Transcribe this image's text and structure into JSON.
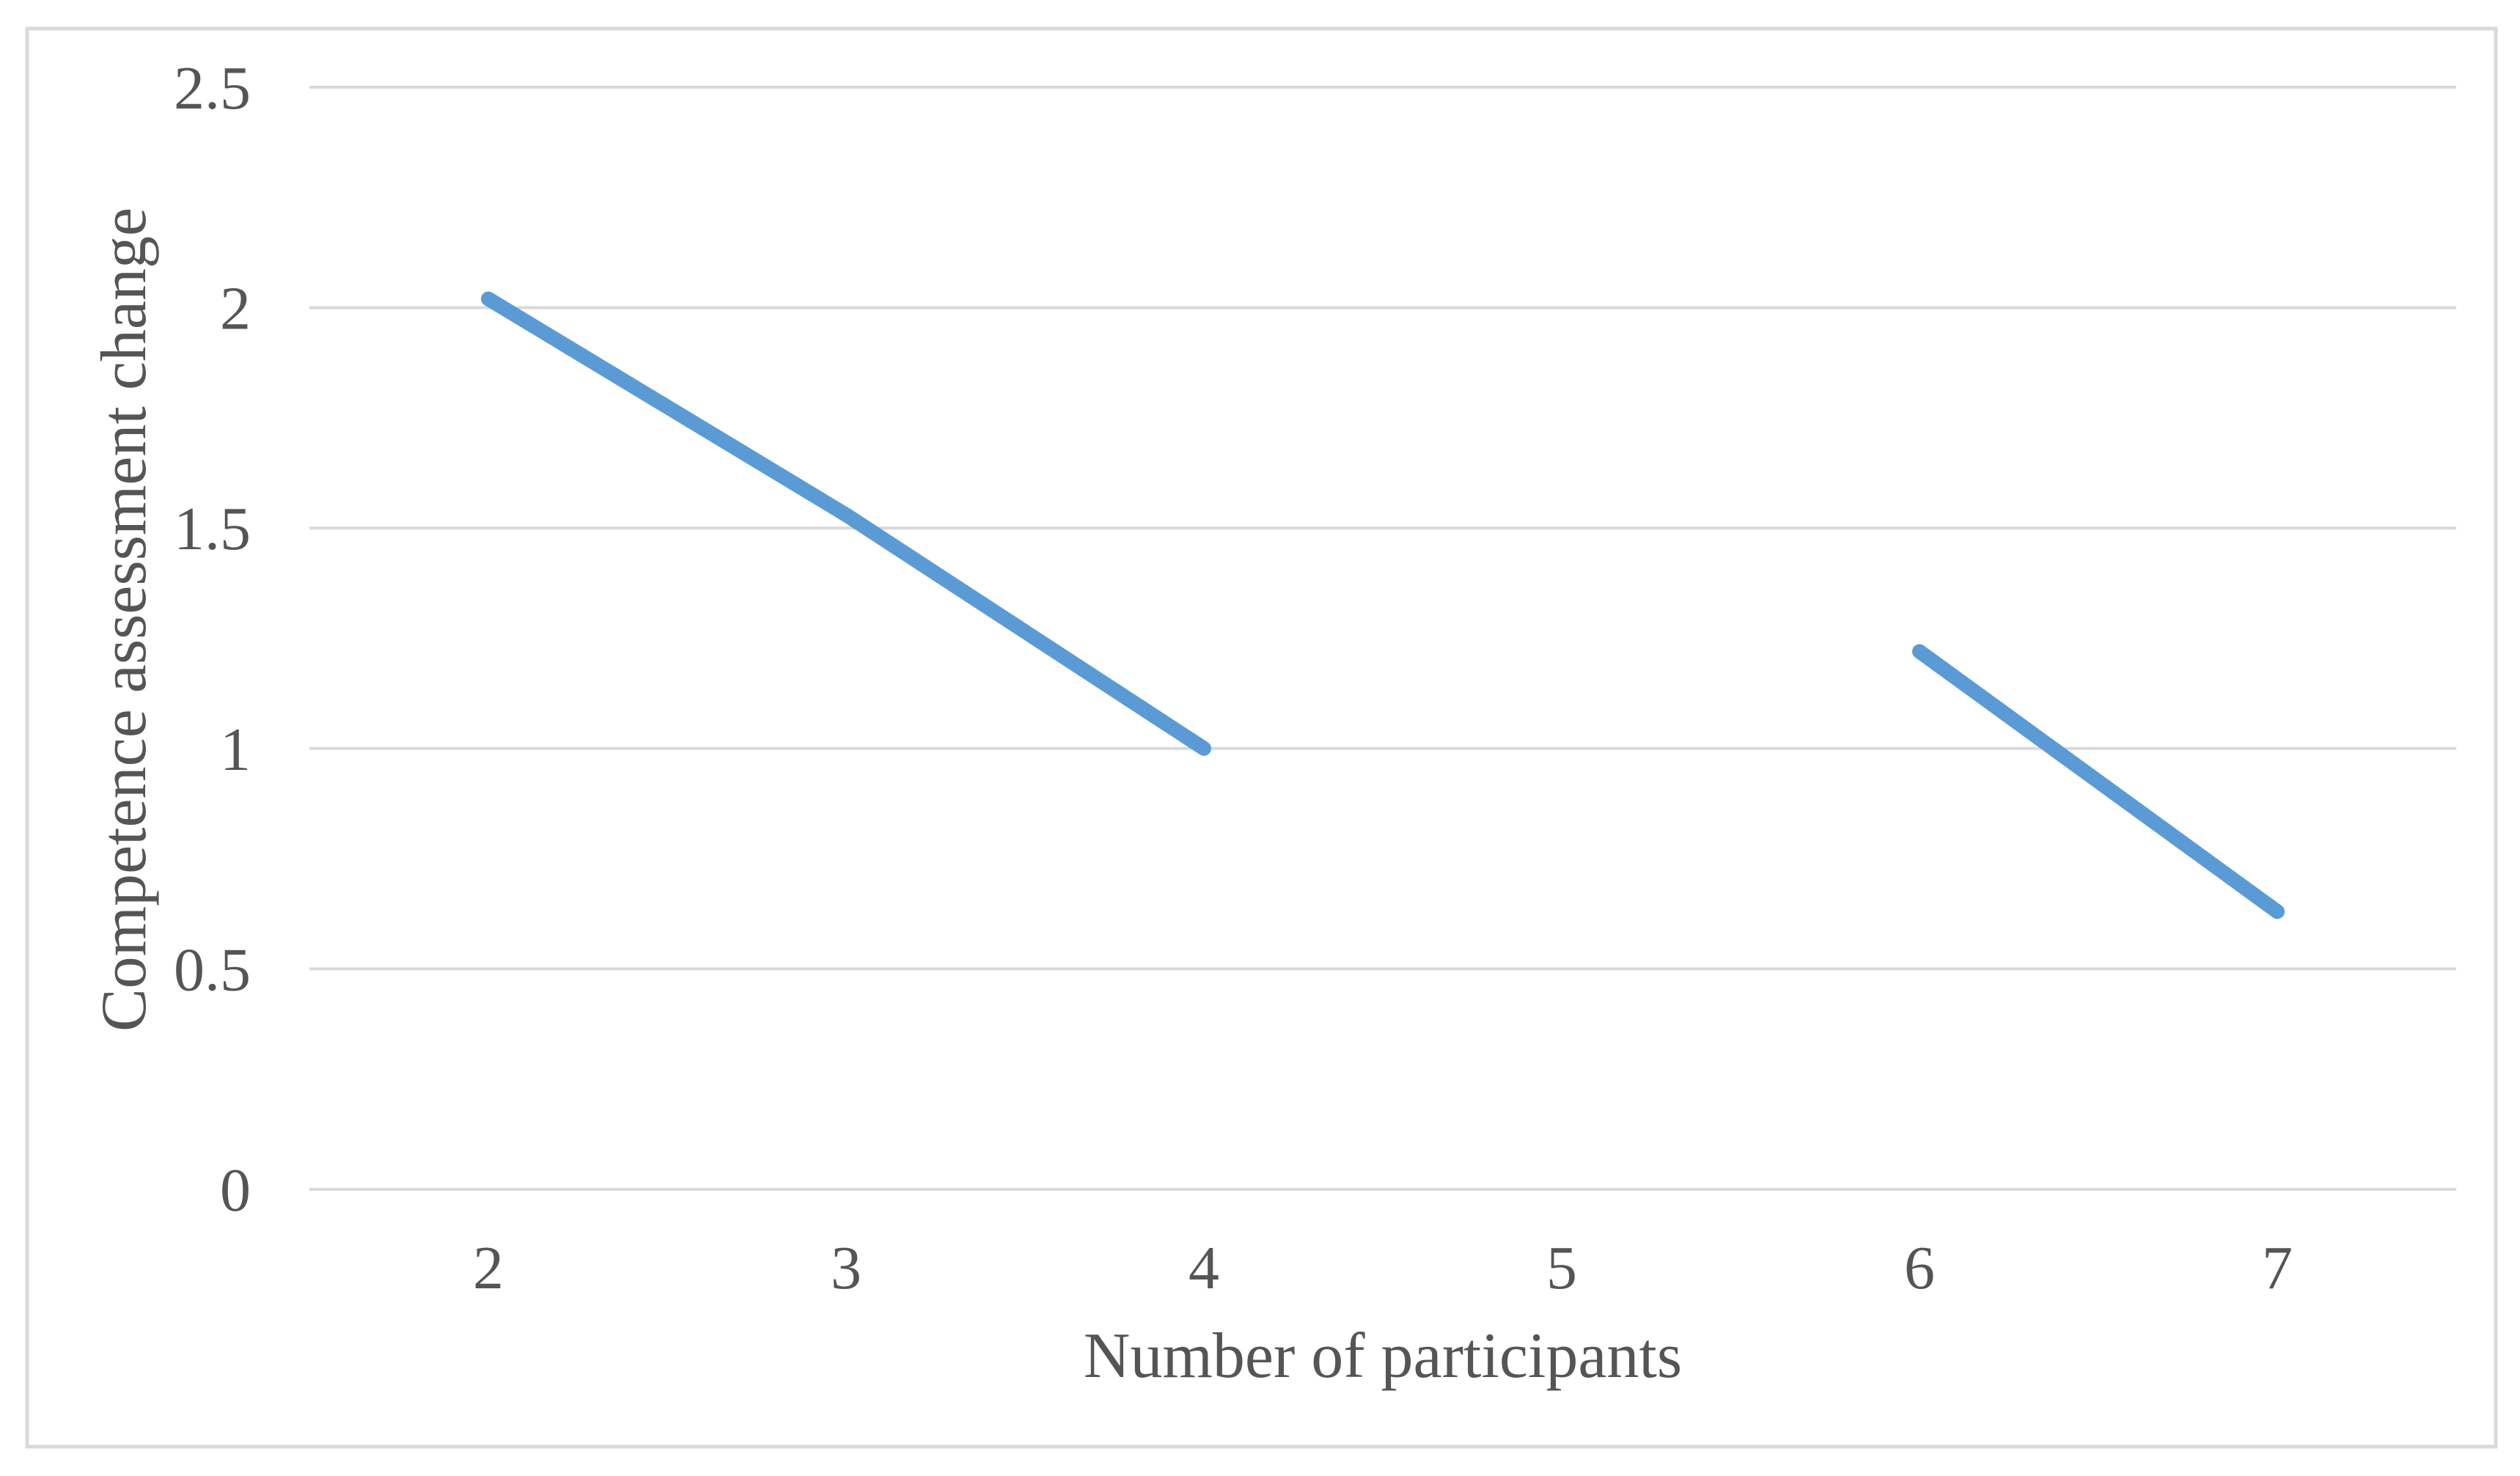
{
  "chart_data": {
    "type": "line",
    "xlabel": "Number of participants",
    "ylabel": "Competence assessment change",
    "categories": [
      "2",
      "3",
      "4",
      "5",
      "6",
      "7"
    ],
    "series": [
      {
        "name": "Competence assessment change",
        "values": [
          2.02,
          1.53,
          1.0,
          null,
          1.22,
          0.63
        ]
      }
    ],
    "ylim": [
      0,
      2.5
    ],
    "y_ticks": [
      0,
      0.5,
      1,
      1.5,
      2,
      2.5
    ],
    "y_tick_labels": [
      "0",
      "0.5",
      "1",
      "1.5",
      "2",
      "2.5"
    ],
    "grid": true,
    "legend": false
  },
  "colors": {
    "line": "#5B9BD5",
    "gridline": "#D9D9D9",
    "frame_border": "#D9D9D9",
    "text": "#555555",
    "background": "#FFFFFF"
  }
}
